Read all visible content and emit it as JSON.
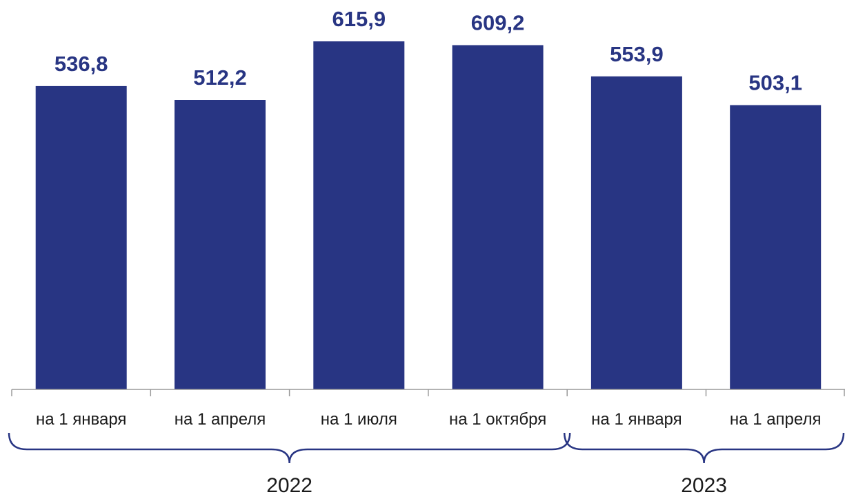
{
  "chart_data": {
    "type": "bar",
    "categories": [
      "на 1 января",
      "на 1 апреля",
      "на 1 июля",
      "на 1 октября",
      "на 1 января",
      "на 1 апреля"
    ],
    "values": [
      536.8,
      512.2,
      615.9,
      609.2,
      553.9,
      503.1
    ],
    "value_labels": [
      "536,8",
      "512,2",
      "615,9",
      "609,2",
      "553,9",
      "503,1"
    ],
    "groups": [
      {
        "label": "2022",
        "from": 0,
        "to": 3
      },
      {
        "label": "2023",
        "from": 4,
        "to": 5
      }
    ],
    "title": "",
    "xlabel": "",
    "ylabel": "",
    "ylim": [
      0,
      615.9
    ],
    "grid": false,
    "legend": "none",
    "colors": {
      "bar": "#283583",
      "value_label": "#283583",
      "axis": "#9a9a9a",
      "bracket": "#283583",
      "text": "#1a1a1a"
    }
  }
}
